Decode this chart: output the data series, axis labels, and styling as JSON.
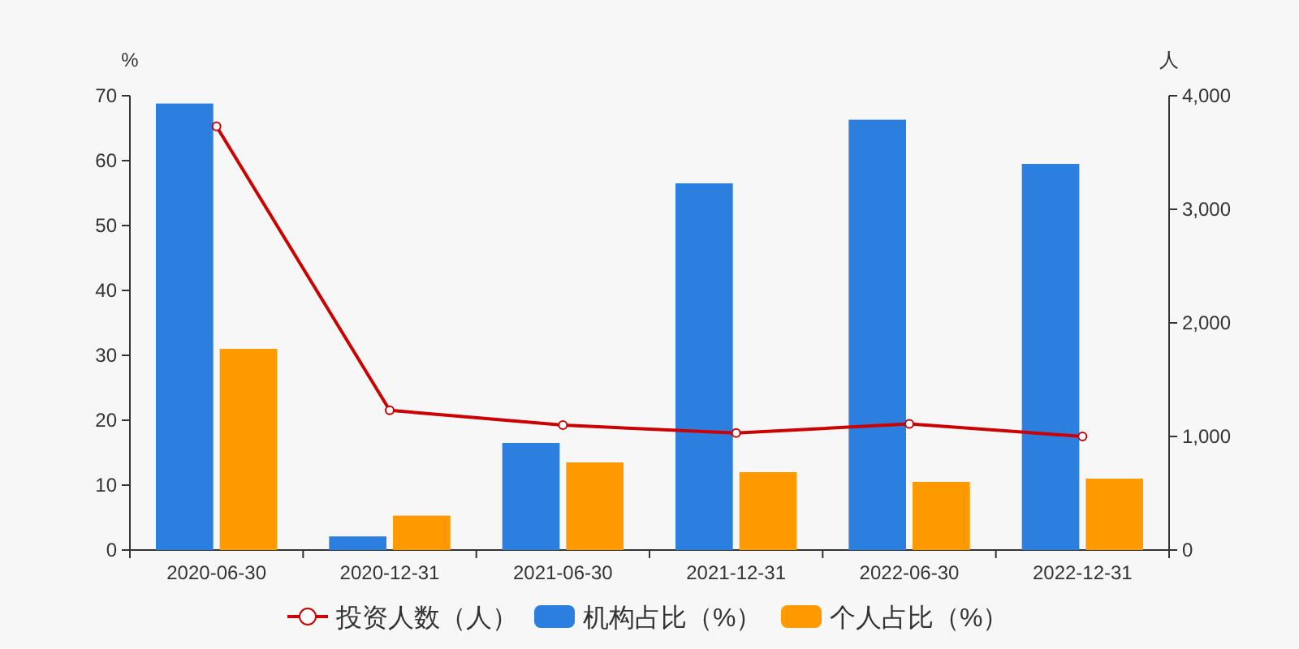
{
  "chart_data": {
    "type": "bar",
    "ylabel": "%",
    "y2label": "人",
    "categories": [
      "2020-06-30",
      "2020-12-31",
      "2021-06-30",
      "2021-12-31",
      "2022-06-30",
      "2022-12-31"
    ],
    "series": [
      {
        "name": "投资人数（人）",
        "type": "line",
        "axis": "y2",
        "color": "#cc0000",
        "values": [
          3730,
          1230,
          1100,
          1030,
          1110,
          1000
        ]
      },
      {
        "name": "机构占比（%）",
        "color": "#2c7fdf",
        "values": [
          68.8,
          2.1,
          16.5,
          56.5,
          66.3,
          59.5
        ]
      },
      {
        "name": "个人占比（%）",
        "color": "#ff9900",
        "values": [
          31.0,
          5.3,
          13.5,
          12.0,
          10.5,
          11.0
        ]
      }
    ],
    "ylim": [
      0,
      70
    ],
    "yticks": [
      0,
      10,
      20,
      30,
      40,
      50,
      60,
      70
    ],
    "y2lim": [
      0,
      4000
    ],
    "y2ticks": [
      {
        "value": 0,
        "label": "0"
      },
      {
        "value": 1000,
        "label": "1,000"
      },
      {
        "value": 2000,
        "label": "2,000"
      },
      {
        "value": 3000,
        "label": "3,000"
      },
      {
        "value": 4000,
        "label": "4,000"
      }
    ],
    "marker": "circle",
    "grid": false,
    "legend": "bottom"
  }
}
